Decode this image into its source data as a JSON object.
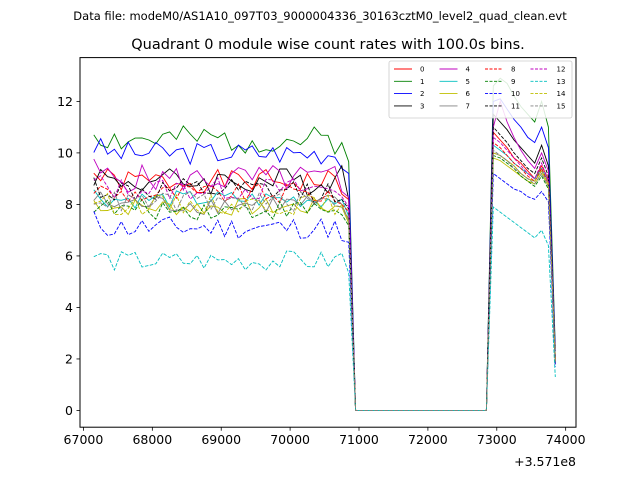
{
  "chart_data": {
    "type": "line",
    "suptitle": "Data file: modeM0/AS1A10_097T03_9000004336_30163cztM0_level2_quad_clean.evt",
    "title": "Quadrant 0 module wise count rates with 100.0s bins.",
    "xlabel": "",
    "ylabel": "",
    "x_offset_label": "+3.571e8",
    "xlim": [
      66950,
      74150
    ],
    "ylim": [
      -0.65,
      13.7
    ],
    "xticks": [
      67000,
      68000,
      69000,
      70000,
      71000,
      72000,
      73000,
      74000
    ],
    "xtick_labels": [
      "67000",
      "68000",
      "69000",
      "70000",
      "71000",
      "72000",
      "73000",
      "74000"
    ],
    "yticks": [
      0,
      2,
      4,
      6,
      8,
      10,
      12
    ],
    "ytick_labels": [
      "0",
      "2",
      "4",
      "6",
      "8",
      "10",
      "12"
    ],
    "legend_position": "top-right",
    "segments": [
      {
        "x_start": 67150,
        "x_end": 70650,
        "step": 100
      },
      {
        "x_start": 70750,
        "x_end": 70850,
        "step": 100
      },
      {
        "x_start": 70950,
        "x_end": 72850,
        "step": 100
      },
      {
        "x_start": 72950,
        "x_end": 73750,
        "step": 100
      },
      {
        "x_start": 73850,
        "x_end": 73850,
        "step": 100
      }
    ],
    "series": [
      {
        "name": "0",
        "color": "#ff0000",
        "dash": "solid",
        "base": 8.9,
        "amp": 0.45,
        "tail": [
          8.4,
          0.0
        ],
        "end": 2.0,
        "high": [
          10.8,
          10.5,
          10.2,
          9.8,
          9.6,
          9.3,
          9.0,
          9.5,
          9.0
        ],
        "seed": 1
      },
      {
        "name": "1",
        "color": "#008000",
        "dash": "solid",
        "base": 10.5,
        "amp": 0.55,
        "tail": [
          10.4,
          0.0
        ],
        "end": 2.4,
        "high": [
          12.6,
          12.9,
          12.7,
          12.2,
          11.8,
          11.5,
          11.2,
          12.0,
          11.0
        ],
        "seed": 2
      },
      {
        "name": "2",
        "color": "#0000ff",
        "dash": "solid",
        "base": 10.0,
        "amp": 0.45,
        "tail": [
          9.4,
          0.0
        ],
        "end": 2.3,
        "high": [
          12.0,
          12.1,
          11.7,
          11.3,
          11.0,
          10.6,
          10.4,
          11.0,
          10.2
        ],
        "seed": 3
      },
      {
        "name": "3",
        "color": "#000000",
        "dash": "solid",
        "base": 8.9,
        "amp": 0.55,
        "tail": [
          9.5,
          0.0
        ],
        "end": 2.1,
        "high": [
          11.5,
          11.2,
          10.9,
          10.5,
          10.2,
          9.9,
          9.6,
          10.3,
          9.5
        ],
        "seed": 4
      },
      {
        "name": "4",
        "color": "#bf00bf",
        "dash": "solid",
        "base": 9.0,
        "amp": 0.55,
        "tail": [
          8.5,
          0.0
        ],
        "end": 2.0,
        "high": [
          11.0,
          12.0,
          11.2,
          10.6,
          10.1,
          9.7,
          9.4,
          10.0,
          9.3
        ],
        "seed": 5
      },
      {
        "name": "5",
        "color": "#00bfbf",
        "dash": "solid",
        "base": 8.2,
        "amp": 0.35,
        "tail": [
          8.2,
          0.0
        ],
        "end": 1.9,
        "high": [
          10.3,
          10.1,
          9.9,
          9.6,
          9.4,
          9.2,
          9.0,
          9.4,
          8.9
        ],
        "seed": 6
      },
      {
        "name": "6",
        "color": "#bfbf00",
        "dash": "solid",
        "base": 7.9,
        "amp": 0.35,
        "tail": [
          7.9,
          0.0
        ],
        "end": 1.8,
        "high": [
          9.8,
          9.7,
          9.5,
          9.3,
          9.1,
          8.9,
          8.8,
          9.2,
          8.7
        ],
        "seed": 7
      },
      {
        "name": "7",
        "color": "#808080",
        "dash": "solid",
        "base": 8.0,
        "amp": 0.4,
        "tail": [
          8.0,
          0.0
        ],
        "end": 1.8,
        "high": [
          10.0,
          9.9,
          9.7,
          9.5,
          9.2,
          9.0,
          8.9,
          9.3,
          8.8
        ],
        "seed": 8
      },
      {
        "name": "8",
        "color": "#ff0000",
        "dash": "dashed",
        "base": 8.4,
        "amp": 0.4,
        "tail": [
          8.0,
          0.0
        ],
        "end": 1.9,
        "high": [
          10.4,
          10.2,
          9.9,
          9.6,
          9.4,
          9.1,
          8.9,
          9.4,
          8.8
        ],
        "seed": 9
      },
      {
        "name": "9",
        "color": "#008000",
        "dash": "dashed",
        "base": 7.8,
        "amp": 0.4,
        "tail": [
          7.6,
          0.0
        ],
        "end": 1.8,
        "high": [
          9.9,
          9.8,
          9.6,
          9.4,
          9.1,
          8.9,
          8.7,
          9.1,
          8.6
        ],
        "seed": 10
      },
      {
        "name": "10",
        "color": "#0000ff",
        "dash": "dashed",
        "base": 7.1,
        "amp": 0.45,
        "tail": [
          6.6,
          0.0
        ],
        "end": 1.7,
        "high": [
          9.2,
          9.0,
          8.8,
          8.6,
          8.5,
          8.3,
          8.2,
          8.5,
          8.1
        ],
        "seed": 11
      },
      {
        "name": "11",
        "color": "#000000",
        "dash": "dashed",
        "base": 8.5,
        "amp": 0.5,
        "tail": [
          8.2,
          0.0
        ],
        "end": 2.0,
        "high": [
          11.0,
          10.7,
          10.4,
          10.0,
          9.7,
          9.4,
          9.2,
          9.8,
          9.1
        ],
        "seed": 12
      },
      {
        "name": "12",
        "color": "#bf00bf",
        "dash": "dashed",
        "base": 8.6,
        "amp": 0.45,
        "tail": [
          8.3,
          0.0
        ],
        "end": 2.0,
        "high": [
          10.6,
          10.4,
          10.1,
          9.8,
          9.5,
          9.2,
          9.0,
          9.6,
          8.9
        ],
        "seed": 13
      },
      {
        "name": "13",
        "color": "#00bfbf",
        "dash": "dashed",
        "base": 5.8,
        "amp": 0.4,
        "tail": [
          6.1,
          0.0
        ],
        "end": 1.3,
        "high": [
          7.9,
          7.7,
          7.5,
          7.3,
          7.1,
          6.9,
          6.7,
          7.0,
          6.4
        ],
        "seed": 14
      },
      {
        "name": "14",
        "color": "#bfbf00",
        "dash": "dashed",
        "base": 8.0,
        "amp": 0.4,
        "tail": [
          8.0,
          0.0
        ],
        "end": 1.9,
        "high": [
          10.0,
          9.9,
          9.7,
          9.5,
          9.2,
          9.0,
          8.9,
          9.3,
          8.8
        ],
        "seed": 15
      },
      {
        "name": "15",
        "color": "#808080",
        "dash": "dashed",
        "base": 8.1,
        "amp": 0.4,
        "tail": [
          7.9,
          0.0
        ],
        "end": 1.9,
        "high": [
          10.1,
          9.9,
          9.7,
          9.4,
          9.2,
          9.0,
          8.8,
          9.2,
          8.7
        ],
        "seed": 16
      }
    ]
  }
}
